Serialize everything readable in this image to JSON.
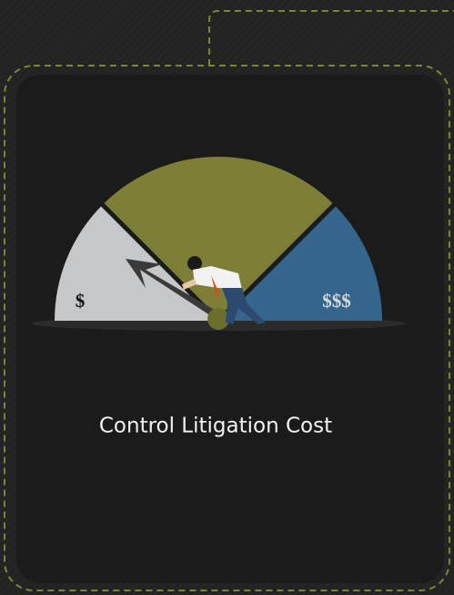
{
  "card": {
    "gauge": {
      "low_label": "$",
      "high_label": "$$$"
    },
    "title": "Control Litigation Cost"
  }
}
